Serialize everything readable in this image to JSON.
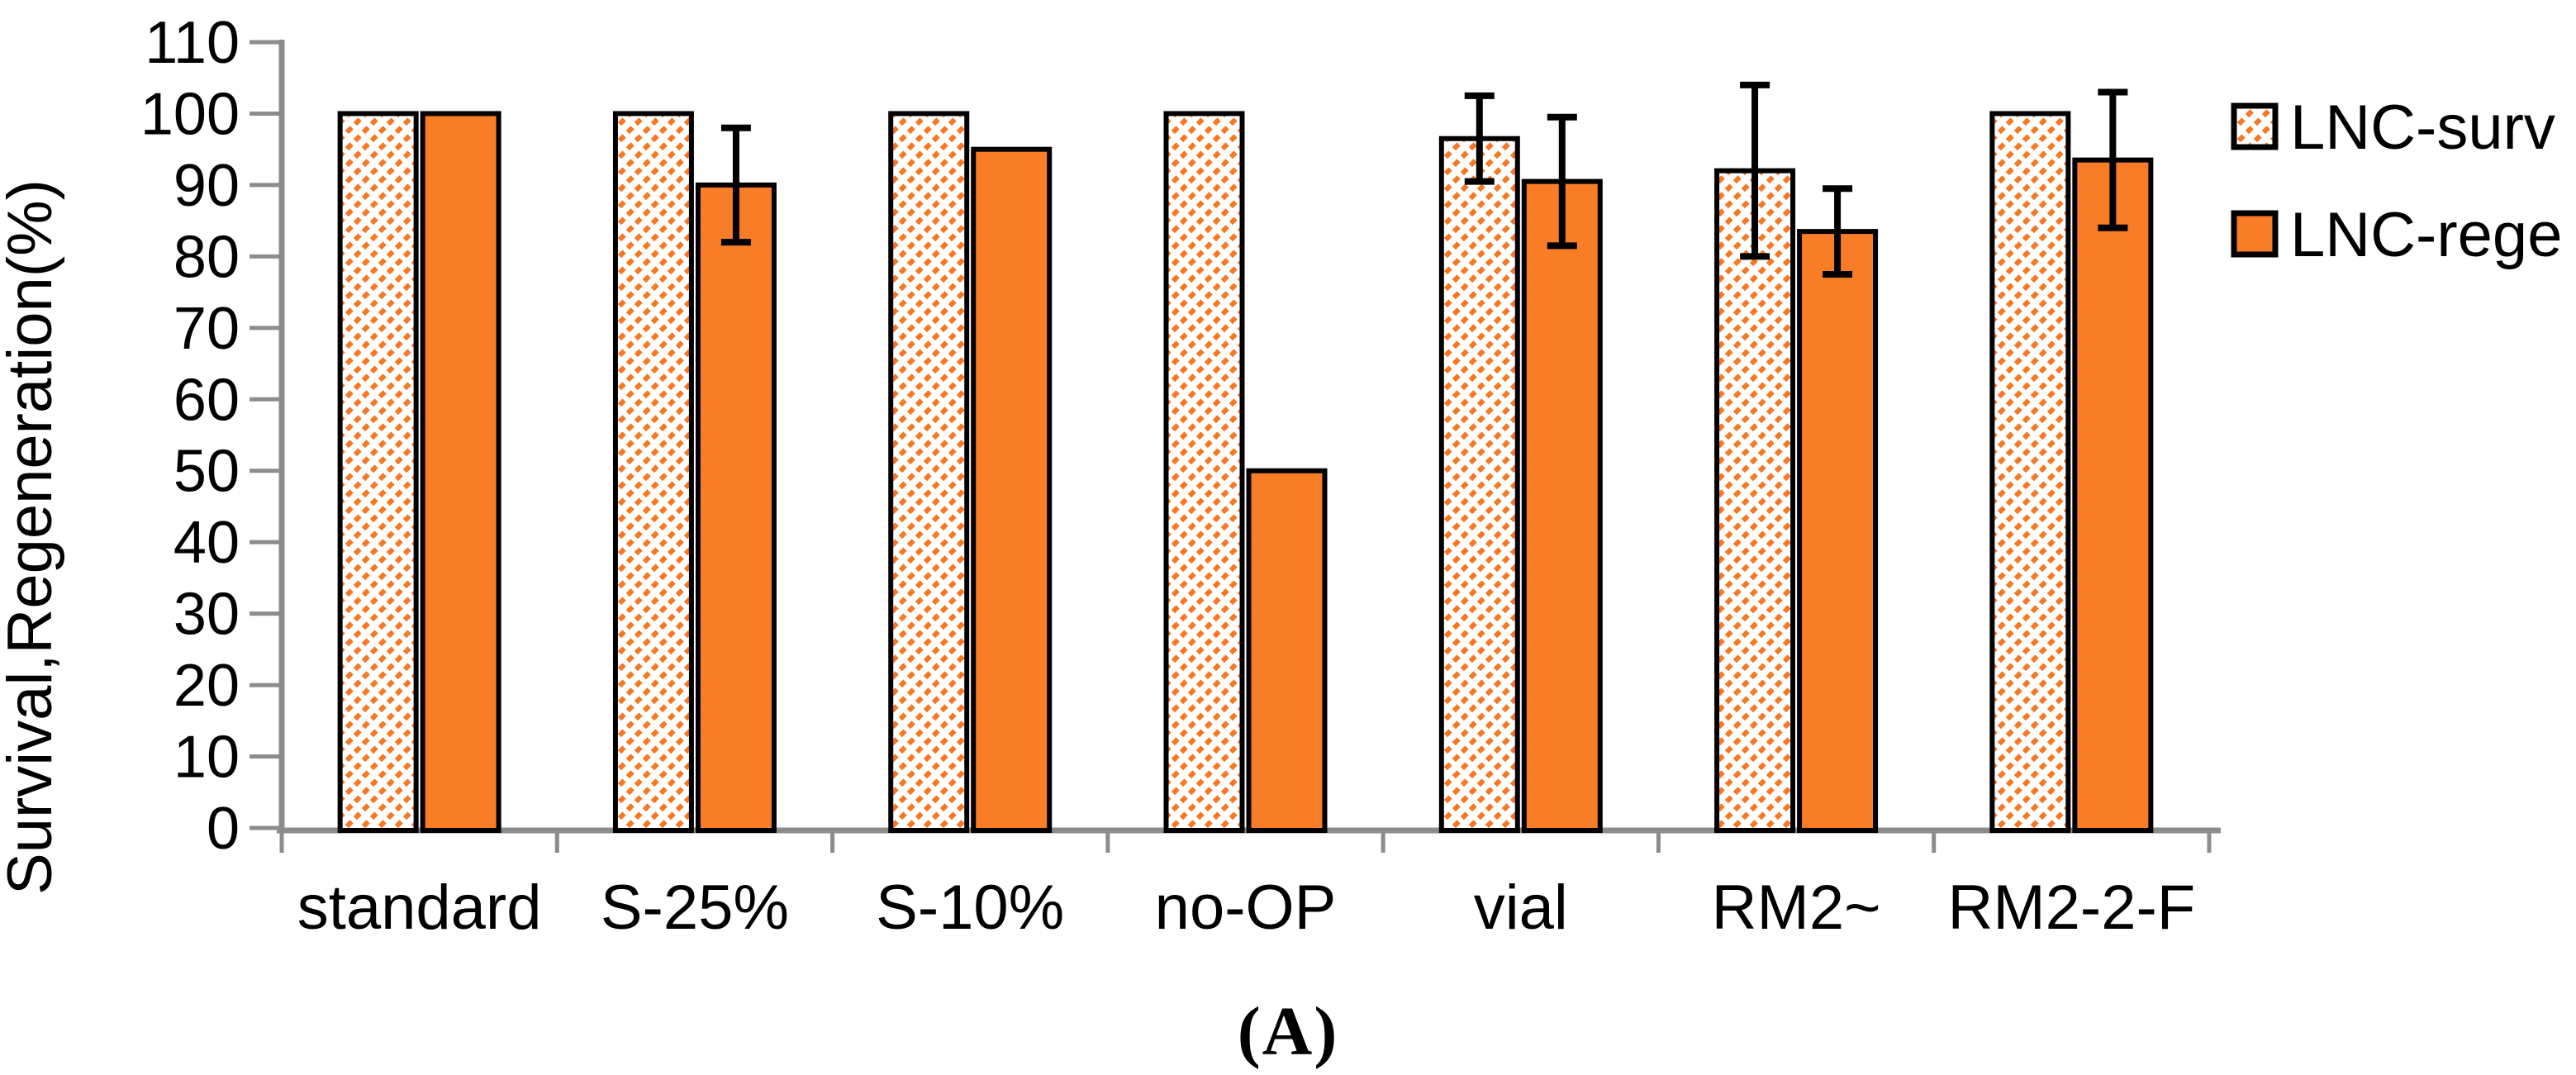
{
  "figure": {
    "caption": "(A)",
    "background": "#ffffff"
  },
  "chart_data": {
    "type": "bar",
    "title": "",
    "xlabel": "",
    "ylabel": "Survival,Regeneration(%)",
    "ylim": [
      0,
      110
    ],
    "ytick_step": 10,
    "yticks": [
      0,
      10,
      20,
      30,
      40,
      50,
      60,
      70,
      80,
      90,
      100,
      110
    ],
    "grid": false,
    "legend_position": "right",
    "categories": [
      "standard",
      "S-25%",
      "S-10%",
      "no-OP",
      "vial",
      "RM2~",
      "RM2-2-F"
    ],
    "series": [
      {
        "name": "LNC-surv",
        "style": "hatched",
        "values": [
          100,
          100,
          100,
          100,
          96.5,
          92,
          100
        ],
        "errors": [
          null,
          null,
          null,
          null,
          6,
          12,
          null
        ]
      },
      {
        "name": "LNC-rege",
        "style": "solid",
        "values": [
          100,
          90,
          95,
          50,
          90.5,
          83.5,
          93.5
        ],
        "errors": [
          null,
          8,
          null,
          null,
          9,
          6,
          9.5
        ]
      }
    ]
  },
  "colors": {
    "bar_orange": "#F87D26",
    "hatch_orange": "#F87722",
    "bar_border": "#000000",
    "axis_gray": "#8C8C8C",
    "error_bar": "#000000",
    "text": "#000000",
    "background": "#ffffff"
  }
}
